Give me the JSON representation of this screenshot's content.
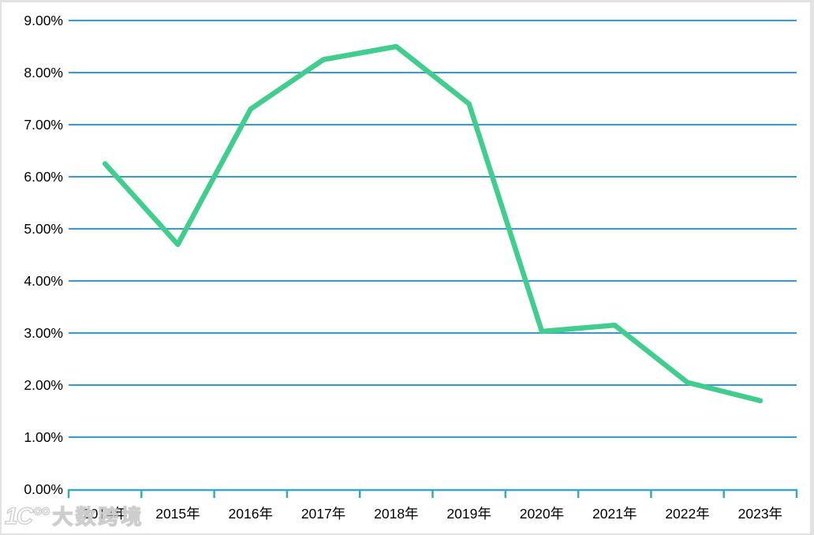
{
  "chart_data": {
    "type": "line",
    "title": "",
    "xlabel": "",
    "ylabel": "",
    "categories": [
      "2014年",
      "2015年",
      "2016年",
      "2017年",
      "2018年",
      "2019年",
      "2020年",
      "2021年",
      "2022年",
      "2023年"
    ],
    "values": [
      6.25,
      4.7,
      7.3,
      8.25,
      8.5,
      7.4,
      3.03,
      3.15,
      2.05,
      1.7
    ],
    "ylim": [
      0,
      9
    ],
    "y_tick_step": 1,
    "y_tick_labels": [
      "0.00%",
      "1.00%",
      "2.00%",
      "3.00%",
      "4.00%",
      "5.00%",
      "6.00%",
      "7.00%",
      "8.00%",
      "9.00%"
    ],
    "grid": true,
    "legend": false,
    "line_color": "#41CD8E",
    "grid_color": "#2D9FD4",
    "axis_color": "#38A8BE",
    "label_color": "#000000"
  },
  "watermark": {
    "logo": "1Ϲ°°",
    "text": "大数跨境"
  }
}
